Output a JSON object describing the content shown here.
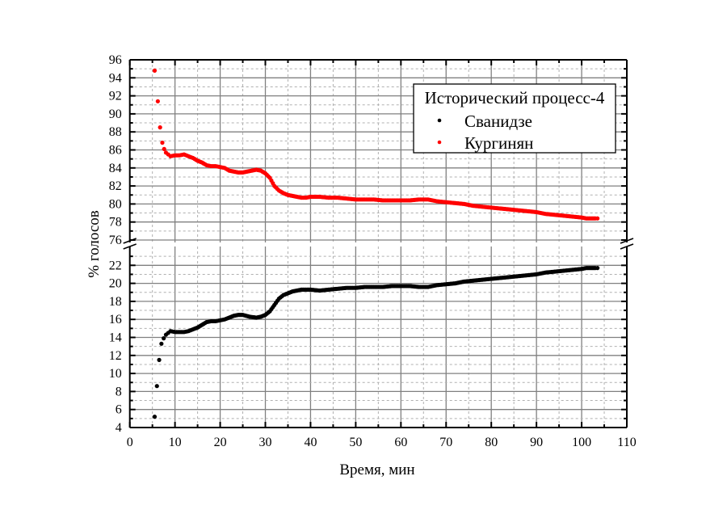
{
  "chart_data": {
    "type": "scatter",
    "xlabel": "Время, мин",
    "ylabel": "% голосов",
    "xlim": [
      0,
      110
    ],
    "xticks": [
      0,
      10,
      20,
      30,
      40,
      50,
      60,
      70,
      80,
      90,
      100,
      110
    ],
    "y_broken": true,
    "ylim_upper": [
      76,
      96
    ],
    "ylim_lower": [
      4,
      22
    ],
    "yticks_upper": [
      76,
      78,
      80,
      82,
      84,
      86,
      88,
      90,
      92,
      94,
      96
    ],
    "yticks_lower": [
      4,
      6,
      8,
      10,
      12,
      14,
      16,
      18,
      20,
      22
    ],
    "grid": true,
    "legend": {
      "title": "Исторический процесс-4",
      "position": "top-right"
    },
    "series": [
      {
        "name": "Сванидзе",
        "color": "#000000",
        "x": [
          5.5,
          6,
          6.5,
          7,
          7.5,
          8,
          8.5,
          9,
          10,
          11,
          12,
          13,
          14,
          15,
          16,
          17,
          18,
          19,
          20,
          21,
          22,
          23,
          24,
          25,
          26.5,
          28,
          29,
          30,
          31,
          32,
          33,
          34,
          35,
          36,
          37,
          38,
          40,
          42,
          44,
          46,
          48,
          50,
          52,
          54,
          56,
          58,
          60,
          62,
          64,
          66,
          68,
          70,
          72,
          74,
          76,
          78,
          80,
          82,
          84,
          86,
          88,
          90,
          92,
          94,
          96,
          98,
          100,
          101,
          102,
          103,
          103.5
        ],
        "y": [
          5.2,
          8.6,
          11.5,
          13.3,
          13.9,
          14.3,
          14.5,
          14.7,
          14.6,
          14.6,
          14.6,
          14.7,
          14.9,
          15.1,
          15.4,
          15.7,
          15.8,
          15.8,
          15.9,
          16.0,
          16.2,
          16.4,
          16.5,
          16.5,
          16.3,
          16.2,
          16.3,
          16.5,
          16.9,
          17.6,
          18.3,
          18.7,
          18.9,
          19.1,
          19.2,
          19.3,
          19.3,
          19.2,
          19.3,
          19.4,
          19.5,
          19.5,
          19.6,
          19.6,
          19.6,
          19.7,
          19.7,
          19.7,
          19.6,
          19.6,
          19.8,
          19.9,
          20.0,
          20.2,
          20.3,
          20.4,
          20.5,
          20.6,
          20.7,
          20.8,
          20.9,
          21.0,
          21.2,
          21.3,
          21.4,
          21.5,
          21.6,
          21.7,
          21.7,
          21.7,
          21.7
        ]
      },
      {
        "name": "Кургинян",
        "color": "#ff0000",
        "x": [
          5.5,
          6.2,
          6.7,
          7.2,
          7.6,
          8,
          8.5,
          9,
          10,
          11,
          12,
          13,
          14,
          15,
          16,
          17,
          18,
          19,
          20,
          21,
          22,
          23,
          24,
          25,
          27,
          28,
          29,
          30,
          31,
          32,
          33,
          34,
          35,
          36,
          38,
          39,
          40,
          42,
          44,
          46,
          48,
          50,
          52,
          54,
          56,
          58,
          60,
          62,
          64,
          66,
          68,
          70,
          72,
          74,
          76,
          78,
          80,
          82,
          84,
          86,
          88,
          90,
          92,
          94,
          96,
          98,
          100,
          101,
          102,
          103,
          103.5
        ],
        "y": [
          94.8,
          91.4,
          88.5,
          86.8,
          86.1,
          85.7,
          85.5,
          85.3,
          85.4,
          85.4,
          85.5,
          85.3,
          85.1,
          84.8,
          84.6,
          84.3,
          84.2,
          84.2,
          84.1,
          84.0,
          83.7,
          83.6,
          83.5,
          83.5,
          83.7,
          83.8,
          83.7,
          83.4,
          82.9,
          82.0,
          81.5,
          81.2,
          81.0,
          80.9,
          80.7,
          80.7,
          80.8,
          80.8,
          80.7,
          80.7,
          80.6,
          80.5,
          80.5,
          80.5,
          80.4,
          80.4,
          80.4,
          80.4,
          80.5,
          80.5,
          80.3,
          80.2,
          80.1,
          80.0,
          79.8,
          79.7,
          79.6,
          79.5,
          79.4,
          79.3,
          79.2,
          79.1,
          78.9,
          78.8,
          78.7,
          78.6,
          78.5,
          78.4,
          78.4,
          78.4,
          78.4
        ]
      }
    ]
  }
}
